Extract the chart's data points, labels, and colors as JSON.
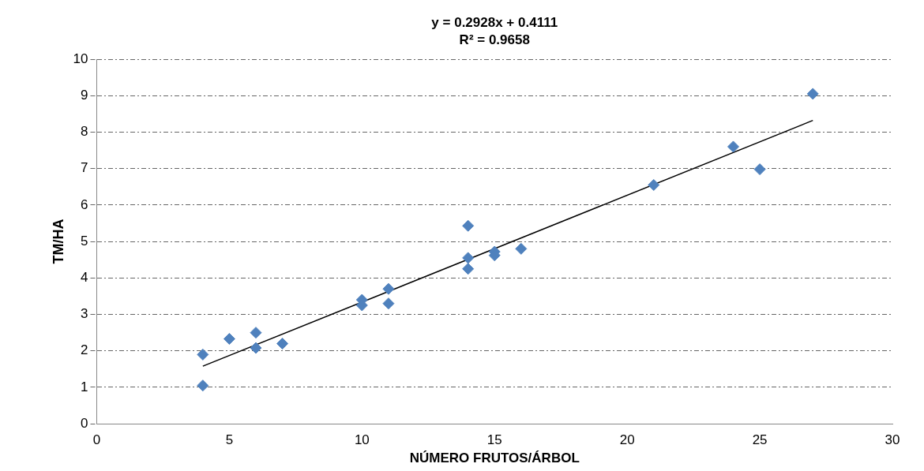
{
  "chart_data": {
    "type": "scatter",
    "xlabel": "NÚMERO FRUTOS/ÁRBOL",
    "ylabel": "TM/HA",
    "annotations": [
      "y = 0.2928x + 0.4111",
      "R² = 0.9658"
    ],
    "xlim": [
      0,
      30
    ],
    "xticks": [
      0,
      5,
      10,
      15,
      20,
      25,
      30
    ],
    "ylim": [
      0,
      10
    ],
    "yticks": [
      0,
      1,
      2,
      3,
      4,
      5,
      6,
      7,
      8,
      9,
      10
    ],
    "grid": "y",
    "legend": false,
    "marker": "diamond",
    "series": [
      {
        "type": "scatter",
        "color": "#4f81bd",
        "x": [
          4,
          4,
          5,
          6,
          6,
          7,
          10,
          10,
          11,
          11,
          14,
          14,
          14,
          15,
          15,
          16,
          21,
          24,
          25,
          27
        ],
        "values": [
          1.9,
          1.05,
          2.33,
          2.5,
          2.08,
          2.2,
          3.4,
          3.25,
          3.7,
          3.3,
          5.43,
          4.55,
          4.25,
          4.72,
          4.62,
          4.8,
          6.55,
          7.6,
          6.98,
          9.05
        ]
      },
      {
        "type": "line",
        "color": "#000000",
        "marker": "none",
        "x": [
          4,
          27
        ],
        "values": [
          1.58,
          8.32
        ]
      }
    ]
  }
}
